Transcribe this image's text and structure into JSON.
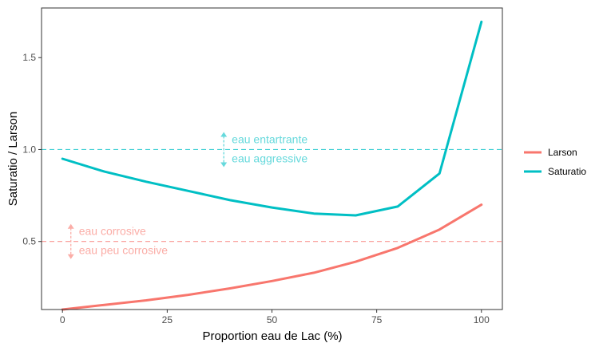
{
  "chart_data": {
    "type": "line",
    "xlabel": "Proportion eau de Lac (%)",
    "ylabel": "Saturatio / Larson",
    "xlim": [
      -5,
      105
    ],
    "ylim": [
      0.13,
      1.77
    ],
    "x_ticks": [
      "0",
      "25",
      "50",
      "75",
      "100"
    ],
    "y_ticks": [
      "0.5",
      "1.0",
      "1.5"
    ],
    "grid": false,
    "legend_position": "right",
    "x": [
      0,
      10,
      20,
      30,
      40,
      50,
      60,
      70,
      80,
      90,
      100
    ],
    "series": [
      {
        "name": "Larson",
        "color": "#F8766D",
        "values": [
          0.13,
          0.155,
          0.18,
          0.21,
          0.245,
          0.285,
          0.33,
          0.39,
          0.465,
          0.565,
          0.7
        ]
      },
      {
        "name": "Saturatio",
        "color": "#00BFC4",
        "values": [
          0.95,
          0.88,
          0.825,
          0.775,
          0.725,
          0.685,
          0.652,
          0.642,
          0.69,
          0.87,
          1.695
        ]
      }
    ],
    "reference_lines": [
      {
        "y": 1.0,
        "color": "#00BFC4"
      },
      {
        "y": 0.5,
        "color": "#F8766D"
      }
    ],
    "annotations": [
      {
        "series": "Saturatio",
        "x": 38.5,
        "y": 1.0,
        "color": "#00BFC4",
        "above": "eau entartrante",
        "below": "eau aggressive"
      },
      {
        "series": "Larson",
        "x": 2,
        "y": 0.5,
        "color": "#F8766D",
        "above": "eau corrosive",
        "below": "eau peu corrosive"
      }
    ]
  }
}
